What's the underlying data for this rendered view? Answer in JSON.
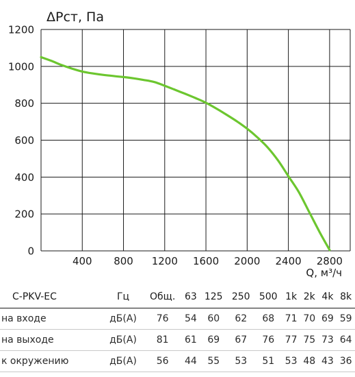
{
  "chart_data": {
    "type": "line",
    "title": "ΔPст, Па",
    "xlabel": "Q, м³/ч",
    "ylabel": "ΔPст, Па",
    "xlim": [
      0,
      3000
    ],
    "ylim": [
      0,
      1200
    ],
    "x_ticks": [
      "400",
      "800",
      "1200",
      "1600",
      "2000",
      "2400",
      "2800"
    ],
    "y_ticks": [
      "0",
      "200",
      "400",
      "600",
      "800",
      "1000",
      "1200"
    ],
    "grid": true,
    "colors": {
      "curve": "#6cc62f"
    },
    "series": [
      {
        "x": [
          0,
          100,
          200,
          300,
          400,
          500,
          600,
          700,
          800,
          900,
          1000,
          1100,
          1200,
          1300,
          1400,
          1500,
          1600,
          1700,
          1800,
          1900,
          2000,
          2100,
          2200,
          2300,
          2400,
          2500,
          2600,
          2700,
          2800
        ],
        "y": [
          1050,
          1030,
          1007,
          988,
          972,
          962,
          954,
          948,
          942,
          935,
          926,
          915,
          895,
          873,
          851,
          828,
          803,
          772,
          738,
          702,
          662,
          615,
          560,
          490,
          405,
          320,
          213,
          105,
          5
        ]
      }
    ]
  },
  "noise_table": {
    "model": "C-PKV-EC",
    "unit_header": "Гц",
    "columns": [
      "Общ.",
      "63",
      "125",
      "250",
      "500",
      "1k",
      "2k",
      "4k",
      "8k"
    ],
    "rows": [
      {
        "label": "на входе",
        "unit": "дБ(А)",
        "values": [
          "76",
          "54",
          "60",
          "62",
          "68",
          "71",
          "70",
          "69",
          "59"
        ]
      },
      {
        "label": "на выходе",
        "unit": "дБ(А)",
        "values": [
          "81",
          "61",
          "69",
          "67",
          "76",
          "77",
          "75",
          "73",
          "64"
        ]
      },
      {
        "label": "к окружению",
        "unit": "дБ(А)",
        "values": [
          "56",
          "44",
          "55",
          "53",
          "51",
          "53",
          "48",
          "43",
          "36"
        ]
      }
    ]
  }
}
